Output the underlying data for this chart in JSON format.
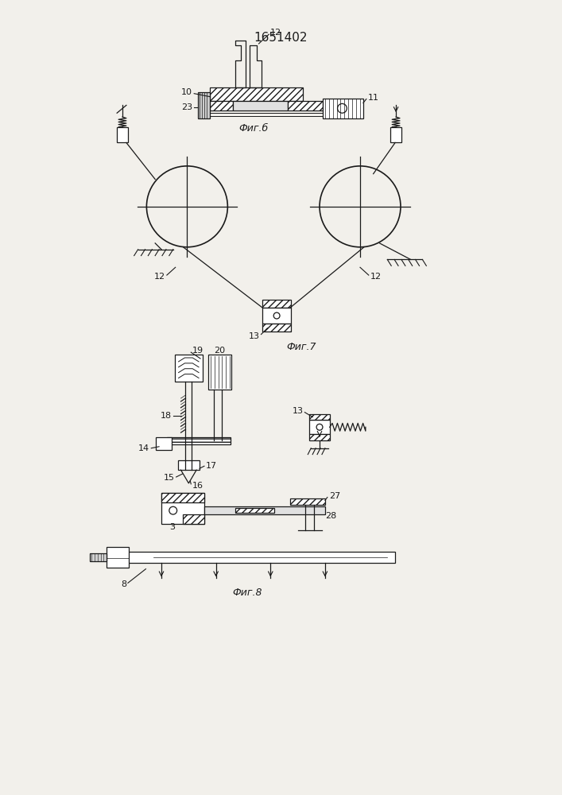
{
  "title": "1651402",
  "fig6_label": "Фиг.б",
  "fig7_label": "Фиг.7",
  "fig8_label": "Фиг.8",
  "bg_color": "#f2f0eb",
  "line_color": "#1a1a1a"
}
